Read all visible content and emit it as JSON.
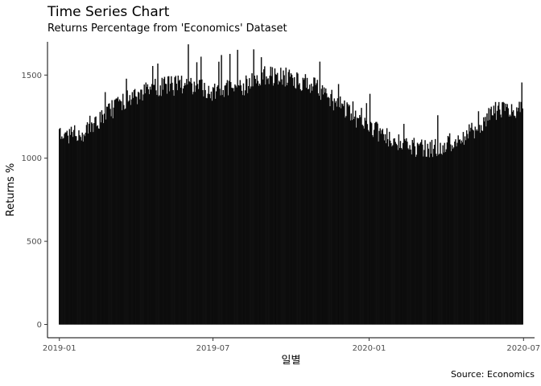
{
  "chart_data": {
    "type": "bar",
    "title": "Time Series Chart",
    "subtitle": "Returns Percentage from 'Economics' Dataset",
    "caption": "Source: Economics",
    "xlabel": "일별",
    "ylabel": "Returns %",
    "x_start": "2019-01-01",
    "x_end": "2020-06-30",
    "xlim": [
      "2018-12-18",
      "2020-07-14"
    ],
    "ylim": [
      -80,
      1700
    ],
    "x_ticks": [
      {
        "date": "2019-01-01",
        "label": "2019-01"
      },
      {
        "date": "2019-07-01",
        "label": "2019-07"
      },
      {
        "date": "2020-01-01",
        "label": "2020-01"
      },
      {
        "date": "2020-07-01",
        "label": "2020-07"
      }
    ],
    "y_ticks": [
      0,
      500,
      1000,
      1500
    ],
    "bar_color": "#000000",
    "grid": false,
    "legend": "none",
    "trend": [
      {
        "date": "2019-01-01",
        "value": 1120
      },
      {
        "date": "2019-02-01",
        "value": 1150
      },
      {
        "date": "2019-03-01",
        "value": 1280
      },
      {
        "date": "2019-04-01",
        "value": 1380
      },
      {
        "date": "2019-05-01",
        "value": 1430
      },
      {
        "date": "2019-06-01",
        "value": 1440
      },
      {
        "date": "2019-07-01",
        "value": 1400
      },
      {
        "date": "2019-08-01",
        "value": 1420
      },
      {
        "date": "2019-09-01",
        "value": 1500
      },
      {
        "date": "2019-10-01",
        "value": 1480
      },
      {
        "date": "2019-11-01",
        "value": 1420
      },
      {
        "date": "2019-12-01",
        "value": 1300
      },
      {
        "date": "2020-01-01",
        "value": 1180
      },
      {
        "date": "2020-02-01",
        "value": 1110
      },
      {
        "date": "2020-03-01",
        "value": 1050
      },
      {
        "date": "2020-04-01",
        "value": 1080
      },
      {
        "date": "2020-05-01",
        "value": 1160
      },
      {
        "date": "2020-06-01",
        "value": 1290
      },
      {
        "date": "2020-06-30",
        "value": 1280
      }
    ]
  }
}
